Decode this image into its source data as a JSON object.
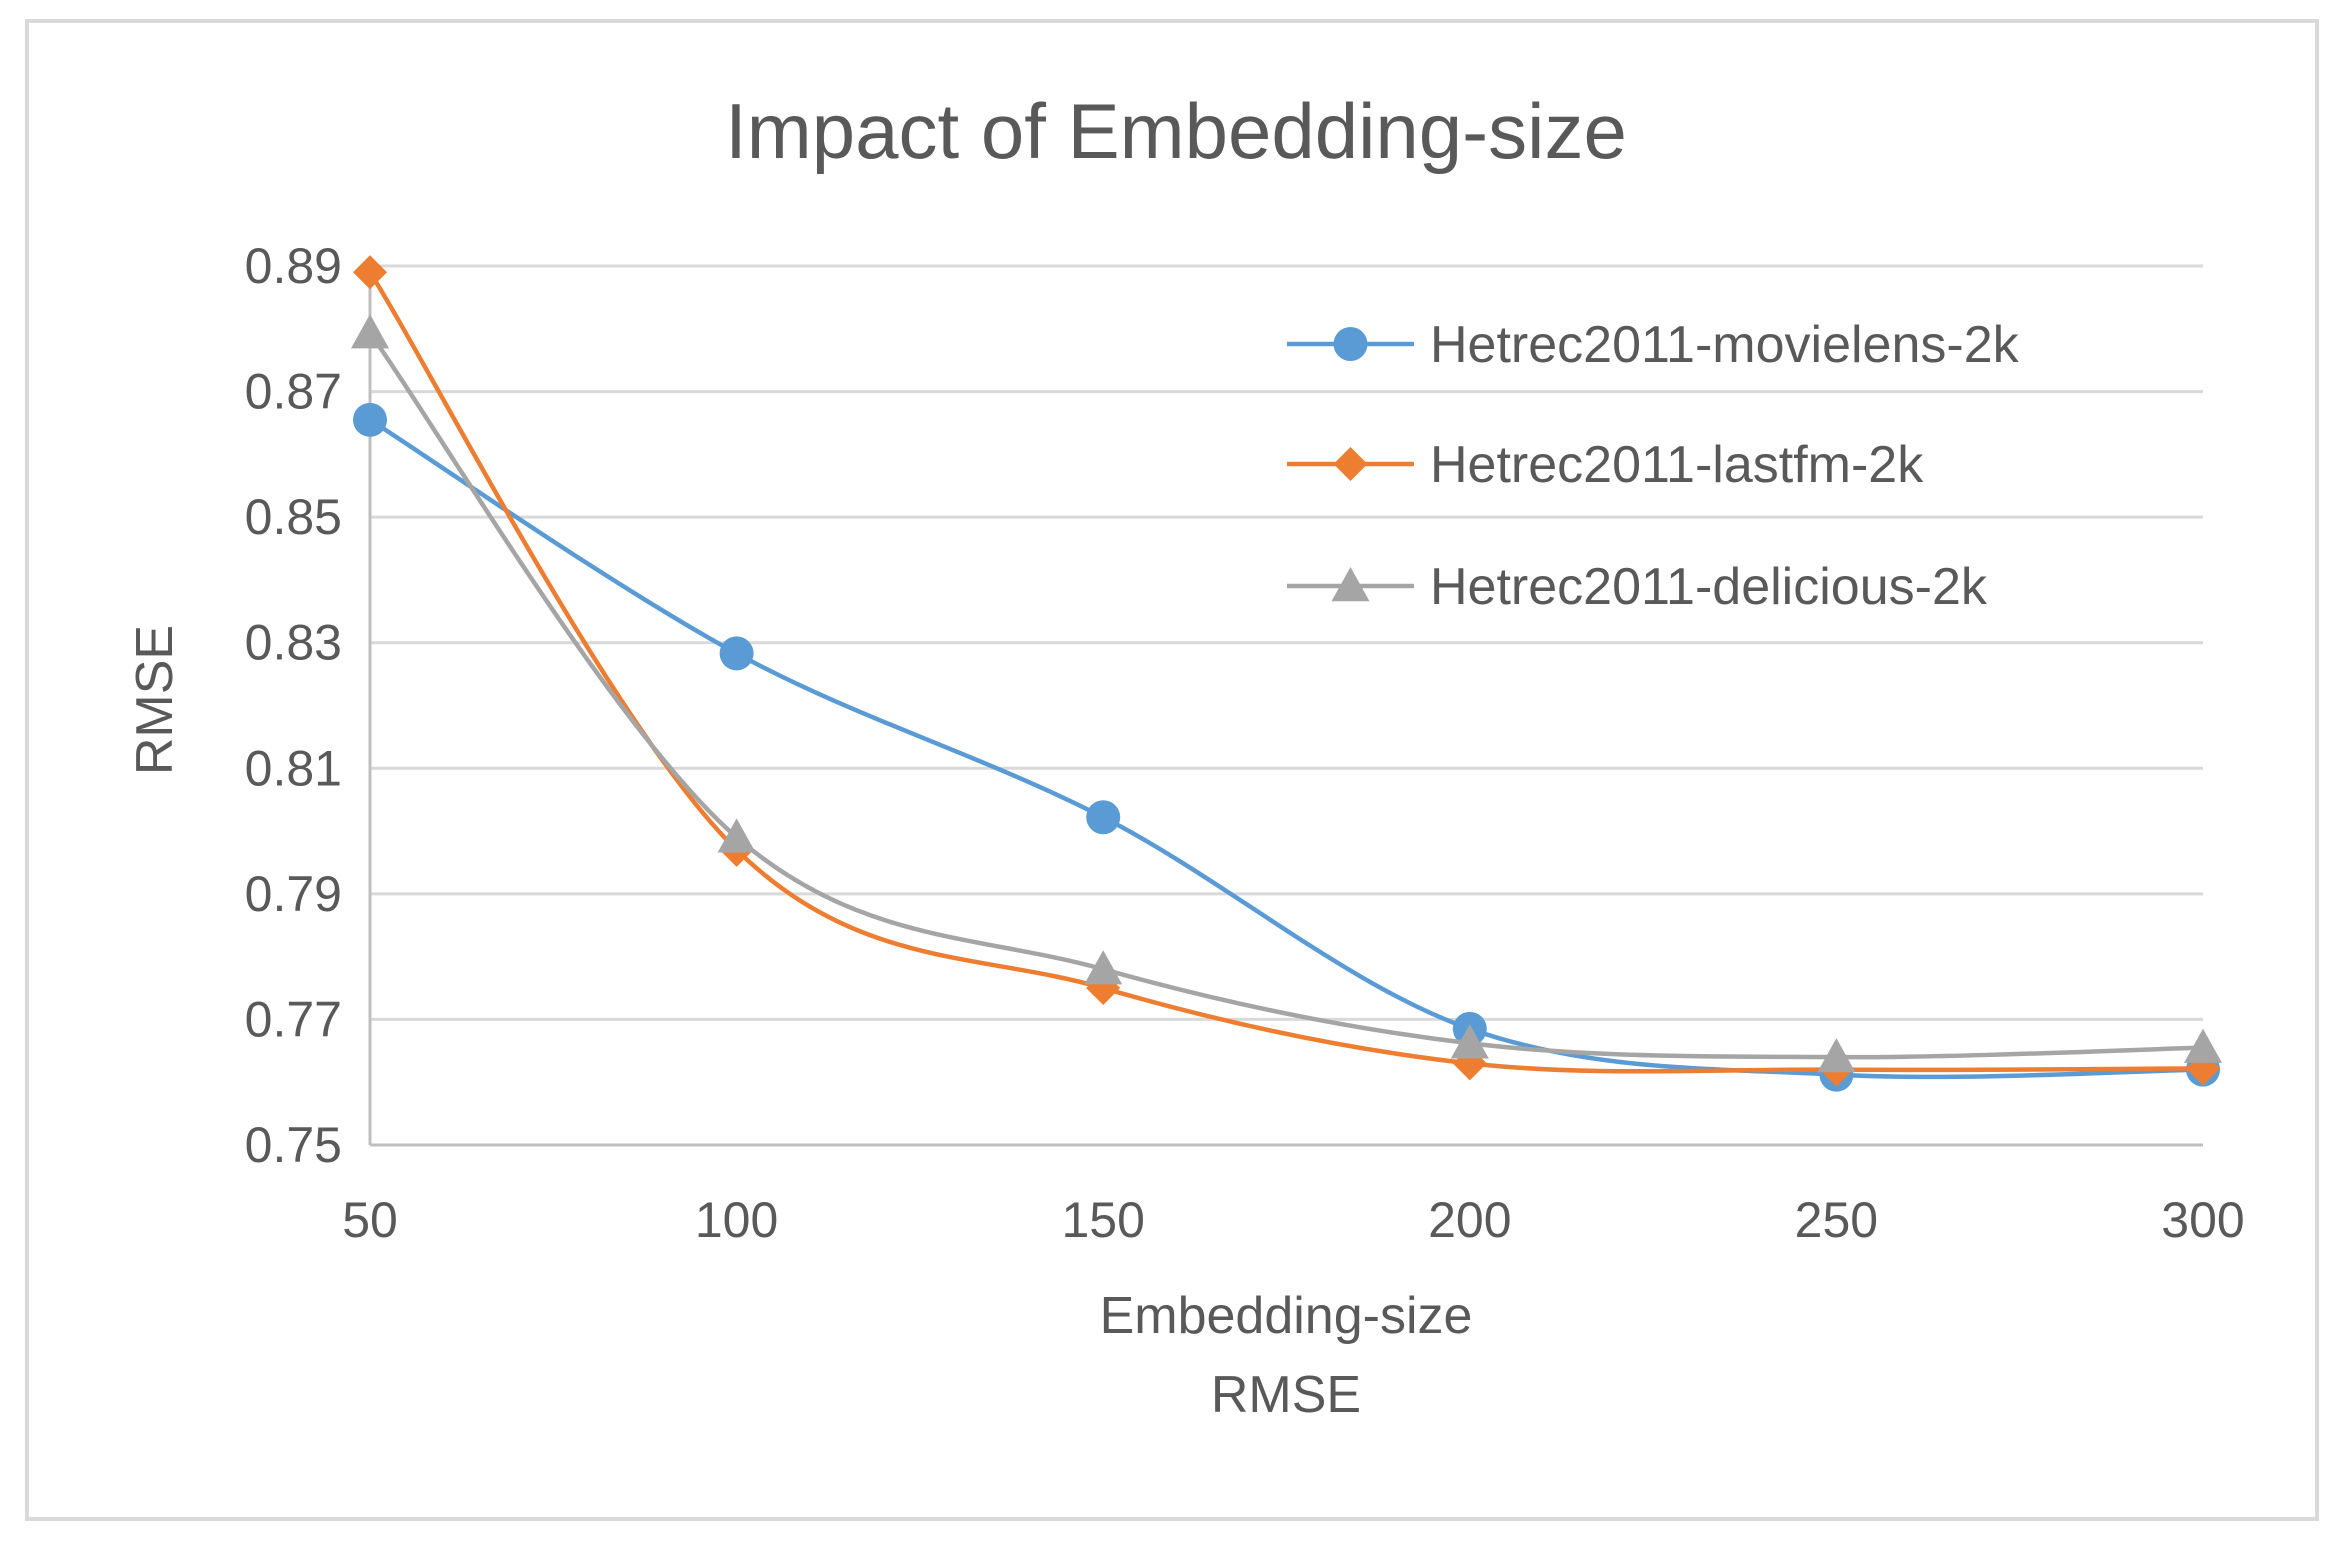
{
  "chart_data": {
    "type": "line",
    "title": "Impact of Embedding-size",
    "xlabel": "Embedding-size",
    "xlabel_sub": "RMSE",
    "ylabel": "RMSE",
    "x": [
      50,
      100,
      150,
      200,
      250,
      300
    ],
    "x_tick_labels": [
      "50",
      "100",
      "150",
      "200",
      "250",
      "300"
    ],
    "ylim": [
      0.75,
      0.89
    ],
    "y_ticks": [
      0.75,
      0.77,
      0.79,
      0.81,
      0.83,
      0.85,
      0.87,
      0.89
    ],
    "y_tick_labels": [
      "0.75",
      "0.77",
      "0.79",
      "0.81",
      "0.83",
      "0.85",
      "0.87",
      "0.89"
    ],
    "grid": true,
    "legend_position": "top-right",
    "smooth": true,
    "series": [
      {
        "name": "Hetrec2011-movielens-2k",
        "color": "#5b9bd5",
        "marker": "circle",
        "values": [
          0.8655,
          0.8283,
          0.8022,
          0.7685,
          0.7612,
          0.762
        ]
      },
      {
        "name": "Hetrec2011-lastfm-2k",
        "color": "#ed7d31",
        "marker": "diamond",
        "values": [
          0.889,
          0.797,
          0.775,
          0.763,
          0.762,
          0.7622
        ]
      },
      {
        "name": "Hetrec2011-delicious-2k",
        "color": "#a5a5a5",
        "marker": "triangle",
        "values": [
          0.8793,
          0.799,
          0.778,
          0.7662,
          0.764,
          0.7655
        ]
      }
    ]
  }
}
